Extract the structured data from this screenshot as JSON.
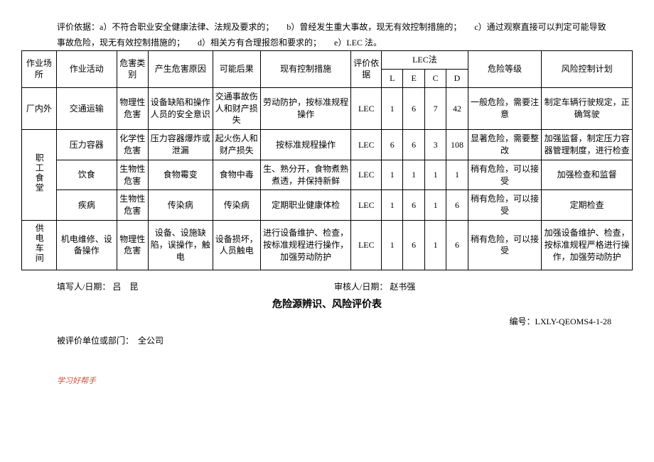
{
  "criteria_text": "评价依据：a）不符合职业安全健康法律、法规及要求的；　　b）曾经发生重大事故，现无有效控制措施的；　　c）通过观察直接可以判定可能导致事故危险，现无有效控制措施的；　　d）相关方有合理报怨和要求的；　　e）LEC 法。",
  "headers": {
    "location": "作业场所",
    "activity": "作业活动",
    "type": "危害类别",
    "cause": "产生危害原因",
    "consequence": "可能后果",
    "control": "现有控制措施",
    "basis": "评价依据",
    "lec_group": "LEC法",
    "L": "L",
    "E": "E",
    "C": "C",
    "D": "D",
    "level": "危险等级",
    "plan": "风险控制计划"
  },
  "rows": [
    {
      "location": "厂内外",
      "activity": "交通运输",
      "type": "物理性危害",
      "cause": "设备缺陷和操作人员的安全意识",
      "consequence": "交通事故伤人和财产损失",
      "control": "劳动防护，按标准规程操作",
      "basis": "LEC",
      "L": "1",
      "E": "6",
      "C": "7",
      "D": "42",
      "level": "一般危险，需要注意",
      "plan": "制定车辆行驶规定，正确驾驶"
    },
    {
      "location": "职工食堂",
      "activity": "压力容器",
      "type": "化学性危害",
      "cause": "压力容器爆炸或泄漏",
      "consequence": "起火伤人和财产损失",
      "control": "按标准规程操作",
      "basis": "LEC",
      "L": "6",
      "E": "6",
      "C": "3",
      "D": "108",
      "level": "显著危险，需要整改",
      "plan": "加强监督，制定压力容器管理制度，进行检查"
    },
    {
      "activity": "饮食",
      "type": "生物性危害",
      "cause": "食物霉变",
      "consequence": "食物中毒",
      "control": "生、熟分开，食物煮熟煮透，并保持新鲜",
      "basis": "LEC",
      "L": "1",
      "E": "1",
      "C": "1",
      "D": "1",
      "level": "稍有危险，可以接受",
      "plan": "加强检查和监督"
    },
    {
      "activity": "疾病",
      "type": "生物性危害",
      "cause": "传染病",
      "consequence": "传染病",
      "control": "定期职业健康体检",
      "basis": "LEC",
      "L": "1",
      "E": "6",
      "C": "1",
      "D": "6",
      "level": "稍有危险，可以接受",
      "plan": "定期检查"
    },
    {
      "location": "供电车间",
      "activity": "机电维修、设备操作",
      "type": "物理性危害",
      "cause": "设备、设施缺陷，误操作，触电",
      "consequence": "设备损坏，人员触电",
      "control": "进行设备维护、检查，按标准规程进行操作，加强劳动防护",
      "basis": "LEC",
      "L": "1",
      "E": "6",
      "C": "1",
      "D": "6",
      "level": "稍有危险，可以接受",
      "plan": "加强设备维护、检查，按标准规程严格进行操作，加强劳动防护"
    }
  ],
  "sign": {
    "filler_label": "填写人/日期：",
    "filler_value": "吕　昆",
    "reviewer_label": "审核人/日期：",
    "reviewer_value": "赵书强"
  },
  "doc_title": "危险源辨识、风险评价表",
  "doc_code_label": "编号：",
  "doc_code": "LXLY-QEOMS4-1-28",
  "dept_label": "被评价单位或部门：",
  "dept_value": "全公司",
  "footer": "学习好帮手"
}
